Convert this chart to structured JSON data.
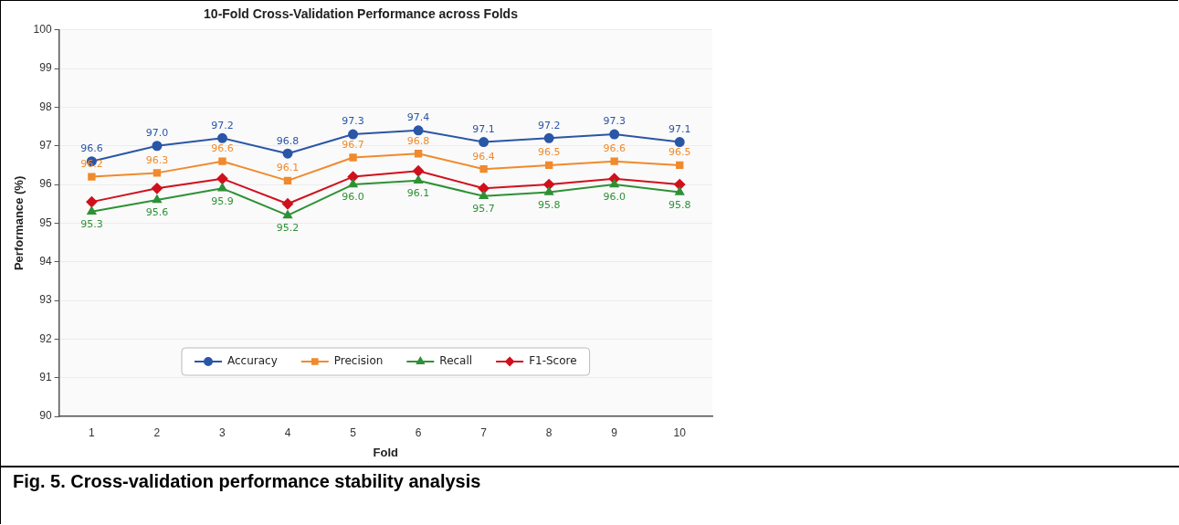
{
  "chart_data": {
    "type": "line",
    "title": "10-Fold Cross-Validation Performance across Folds",
    "xlabel": "Fold",
    "ylabel": "Performance (%)",
    "categories": [
      "1",
      "2",
      "3",
      "4",
      "5",
      "6",
      "7",
      "8",
      "9",
      "10"
    ],
    "series": [
      {
        "name": "Accuracy",
        "color": "#2a56a6",
        "marker": "circle",
        "values": [
          96.6,
          97.0,
          97.2,
          96.8,
          97.3,
          97.4,
          97.1,
          97.2,
          97.3,
          97.1
        ],
        "value_labels": [
          "96.6",
          "97.0",
          "97.2",
          "96.8",
          "97.3",
          "97.4",
          "97.1",
          "97.2",
          "97.3",
          "97.1"
        ]
      },
      {
        "name": "Precision",
        "color": "#f08a2c",
        "marker": "square",
        "values": [
          96.2,
          96.3,
          96.6,
          96.1,
          96.7,
          96.8,
          96.4,
          96.5,
          96.6,
          96.5
        ],
        "value_labels": [
          "96.2",
          "96.3",
          "96.6",
          "96.1",
          "96.7",
          "96.8",
          "96.4",
          "96.5",
          "96.6",
          "96.5"
        ]
      },
      {
        "name": "Recall",
        "color": "#2e9135",
        "marker": "triangle",
        "values": [
          95.3,
          95.6,
          95.9,
          95.2,
          96.0,
          96.1,
          95.7,
          95.8,
          96.0,
          95.8
        ],
        "value_labels": [
          "95.3",
          "95.6",
          "95.9",
          "95.2",
          "96.0",
          "96.1",
          "95.7",
          "95.8",
          "96.0",
          "95.8"
        ]
      },
      {
        "name": "F1-Score",
        "color": "#d0101c",
        "marker": "diamond",
        "values": [
          95.55,
          95.9,
          96.15,
          95.5,
          96.2,
          96.35,
          95.9,
          96.0,
          96.15,
          96.0
        ]
      }
    ],
    "ylim": [
      90,
      100
    ],
    "yticks": [
      90,
      91,
      92,
      93,
      94,
      95,
      96,
      97,
      98,
      99,
      100
    ],
    "grid": "y",
    "legend": "bottom",
    "annotations": [
      "Fig. 5. Cross-validation performance stability analysis"
    ]
  }
}
